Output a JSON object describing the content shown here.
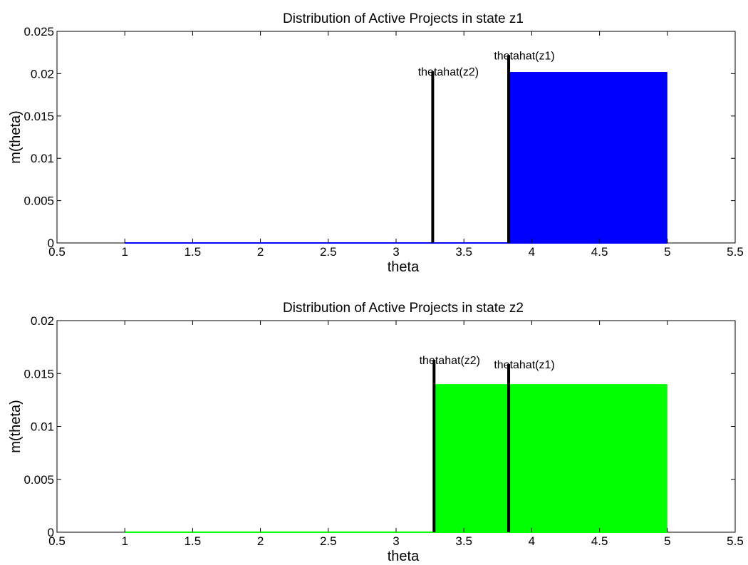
{
  "chart_data": [
    {
      "type": "area",
      "title": "Distribution of Active Projects in state z1",
      "xlabel": "theta",
      "ylabel": "m(theta)",
      "xlim": [
        0.5,
        5.5
      ],
      "ylim": [
        0,
        0.025
      ],
      "xticks": [
        "0.5",
        "1",
        "1.5",
        "2",
        "2.5",
        "3",
        "3.5",
        "4",
        "4.5",
        "5",
        "5.5"
      ],
      "yticks": [
        "0",
        "0.005",
        "0.01",
        "0.015",
        "0.02",
        "0.025"
      ],
      "color": "#0000ff",
      "grid": false,
      "series": [
        {
          "x": [
            1,
            3.83,
            3.83,
            5
          ],
          "y": [
            0,
            0,
            0.0202,
            0.0202
          ]
        }
      ],
      "annotations": [
        {
          "text": "thetahat(z2)",
          "x": 3.27,
          "y_top": 0.0203
        },
        {
          "text": "thetahat(z1)",
          "x": 3.83,
          "y_top": 0.0222
        }
      ]
    },
    {
      "type": "area",
      "title": "Distribution of Active Projects in state z2",
      "xlabel": "theta",
      "ylabel": "m(theta)",
      "xlim": [
        0.5,
        5.5
      ],
      "ylim": [
        0,
        0.02
      ],
      "xticks": [
        "0.5",
        "1",
        "1.5",
        "2",
        "2.5",
        "3",
        "3.5",
        "4",
        "4.5",
        "5",
        "5.5"
      ],
      "yticks": [
        "0",
        "0.005",
        "0.01",
        "0.015",
        "0.02"
      ],
      "color": "#00ff00",
      "grid": false,
      "series": [
        {
          "x": [
            1,
            3.28,
            3.28,
            5
          ],
          "y": [
            0,
            0,
            0.014,
            0.014
          ]
        }
      ],
      "annotations": [
        {
          "text": "thetahat(z2)",
          "x": 3.28,
          "y_top": 0.0163
        },
        {
          "text": "thetahat(z1)",
          "x": 3.83,
          "y_top": 0.0159
        }
      ]
    }
  ]
}
